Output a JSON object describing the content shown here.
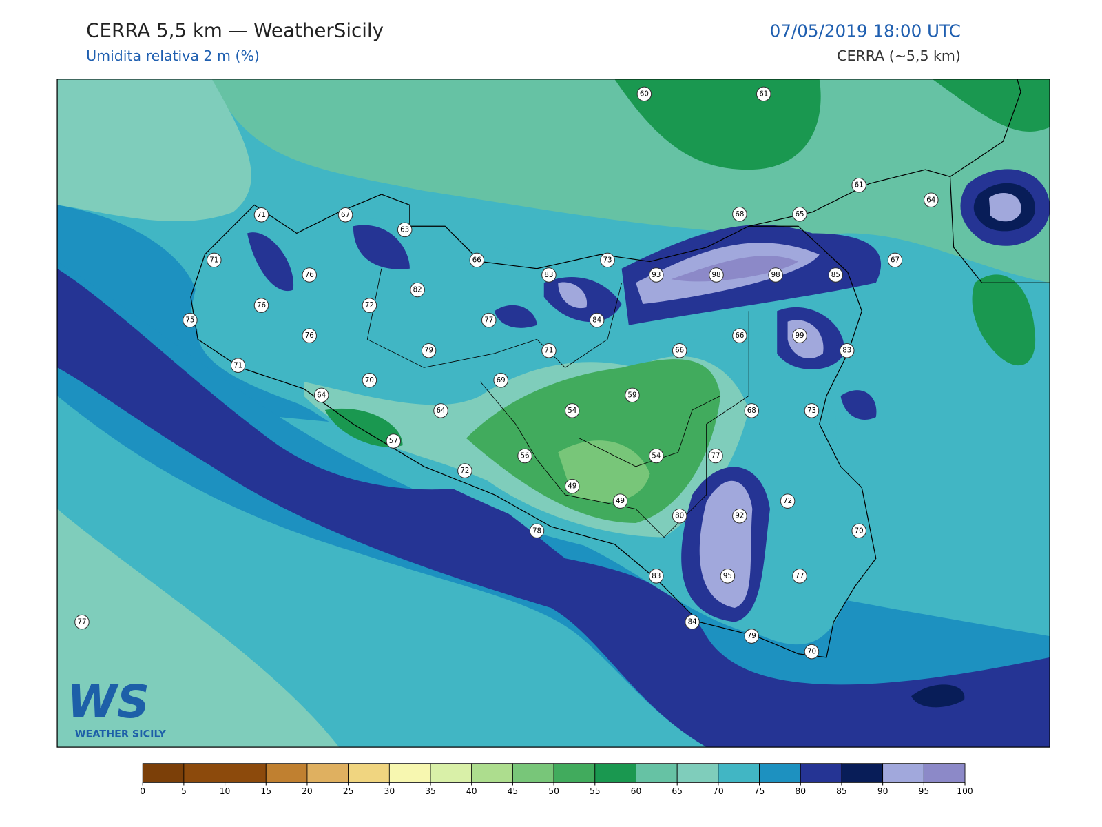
{
  "header": {
    "title": "CERRA 5,5 km — WeatherSicily",
    "subtitle": "Umidita relativa 2 m (%)",
    "datetime": "07/05/2019 18:00 UTC",
    "model": "CERRA (~5,5 km)"
  },
  "stations": [
    60,
    61,
    61,
    64,
    68,
    65,
    71,
    67,
    63,
    71,
    66,
    73,
    67,
    76,
    83,
    93,
    98,
    98,
    85,
    82,
    76,
    72,
    75,
    77,
    84,
    76,
    66,
    99,
    79,
    71,
    66,
    83,
    71,
    70,
    69,
    64,
    59,
    64,
    54,
    68,
    73,
    57,
    56,
    54,
    77,
    72,
    49,
    49,
    72,
    80,
    92,
    78,
    70,
    83,
    95,
    77,
    77,
    84,
    79,
    70
  ],
  "colorbar": {
    "ticks": [
      0,
      5,
      10,
      15,
      20,
      25,
      30,
      35,
      40,
      45,
      50,
      55,
      60,
      65,
      70,
      75,
      80,
      85,
      90,
      95,
      100
    ],
    "colors": [
      "#7b3f08",
      "#8c4a0c",
      "#8c4a0c",
      "#c08030",
      "#dfb060",
      "#f0d580",
      "#f7f7b0",
      "#d9f0a8",
      "#addd8e",
      "#78c679",
      "#41ab5d",
      "#1a9850",
      "#66c2a4",
      "#7fcdbb",
      "#41b6c4",
      "#1d91c0",
      "#253494",
      "#081d58",
      "#a1a8dc",
      "#8c89c8"
    ]
  },
  "logo": {
    "mark": "WS",
    "text": "WEATHER SICILY"
  }
}
